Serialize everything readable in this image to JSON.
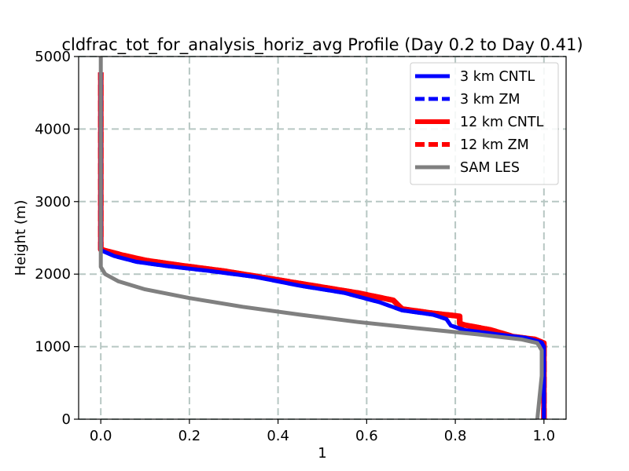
{
  "chart_data": {
    "type": "line",
    "title": "cldfrac_tot_for_analysis_horiz_avg Profile (Day 0.2 to Day 0.41)",
    "xlabel": "1",
    "ylabel": "Height (m)",
    "xlim": [
      -0.05,
      1.05
    ],
    "ylim": [
      0,
      5000
    ],
    "xticks": [
      0.0,
      0.2,
      0.4,
      0.6,
      0.8,
      1.0
    ],
    "xtick_labels": [
      "0.0",
      "0.2",
      "0.4",
      "0.6",
      "0.8",
      "1.0"
    ],
    "yticks": [
      0,
      1000,
      2000,
      3000,
      4000,
      5000
    ],
    "ytick_labels": [
      "0",
      "1000",
      "2000",
      "3000",
      "4000",
      "5000"
    ],
    "grid": true,
    "legend_position": "top-right",
    "series": [
      {
        "name": "3 km CNTL",
        "color": "#0000ff",
        "style": "solid",
        "points": [
          [
            1.0,
            0
          ],
          [
            1.0,
            1000
          ],
          [
            0.995,
            1060
          ],
          [
            0.96,
            1120
          ],
          [
            0.92,
            1150
          ],
          [
            0.87,
            1190
          ],
          [
            0.82,
            1230
          ],
          [
            0.79,
            1290
          ],
          [
            0.78,
            1380
          ],
          [
            0.75,
            1440
          ],
          [
            0.68,
            1500
          ],
          [
            0.63,
            1610
          ],
          [
            0.55,
            1740
          ],
          [
            0.45,
            1840
          ],
          [
            0.35,
            1960
          ],
          [
            0.25,
            2040
          ],
          [
            0.15,
            2110
          ],
          [
            0.08,
            2170
          ],
          [
            0.03,
            2250
          ],
          [
            0.0,
            2330
          ],
          [
            0.0,
            2500
          ],
          [
            0.0,
            4780
          ]
        ]
      },
      {
        "name": "3 km ZM",
        "color": "#0000ff",
        "style": "dashed",
        "points": [
          [
            1.0,
            0
          ],
          [
            1.0,
            1000
          ],
          [
            0.995,
            1060
          ],
          [
            0.96,
            1120
          ],
          [
            0.92,
            1150
          ],
          [
            0.87,
            1190
          ],
          [
            0.82,
            1230
          ],
          [
            0.79,
            1290
          ],
          [
            0.78,
            1380
          ],
          [
            0.75,
            1440
          ],
          [
            0.68,
            1500
          ],
          [
            0.63,
            1610
          ],
          [
            0.55,
            1740
          ],
          [
            0.45,
            1840
          ],
          [
            0.35,
            1960
          ],
          [
            0.25,
            2040
          ],
          [
            0.15,
            2110
          ],
          [
            0.08,
            2170
          ],
          [
            0.03,
            2250
          ],
          [
            0.0,
            2330
          ],
          [
            0.0,
            2500
          ],
          [
            0.0,
            4780
          ]
        ]
      },
      {
        "name": "12 km CNTL",
        "color": "#ff0000",
        "style": "solid",
        "points": [
          [
            1.0,
            0
          ],
          [
            1.0,
            1050
          ],
          [
            0.98,
            1100
          ],
          [
            0.93,
            1140
          ],
          [
            0.88,
            1230
          ],
          [
            0.82,
            1300
          ],
          [
            0.81,
            1320
          ],
          [
            0.81,
            1420
          ],
          [
            0.75,
            1460
          ],
          [
            0.68,
            1520
          ],
          [
            0.66,
            1640
          ],
          [
            0.58,
            1740
          ],
          [
            0.48,
            1840
          ],
          [
            0.38,
            1940
          ],
          [
            0.28,
            2040
          ],
          [
            0.18,
            2120
          ],
          [
            0.1,
            2190
          ],
          [
            0.05,
            2260
          ],
          [
            0.0,
            2340
          ],
          [
            0.0,
            2500
          ],
          [
            0.0,
            4780
          ]
        ]
      },
      {
        "name": "12 km ZM",
        "color": "#ff0000",
        "style": "dashed",
        "points": [
          [
            1.0,
            0
          ],
          [
            1.0,
            1050
          ],
          [
            0.98,
            1100
          ],
          [
            0.93,
            1140
          ],
          [
            0.88,
            1230
          ],
          [
            0.82,
            1300
          ],
          [
            0.81,
            1320
          ],
          [
            0.81,
            1420
          ],
          [
            0.75,
            1460
          ],
          [
            0.68,
            1520
          ],
          [
            0.66,
            1640
          ],
          [
            0.58,
            1740
          ],
          [
            0.48,
            1840
          ],
          [
            0.38,
            1940
          ],
          [
            0.28,
            2040
          ],
          [
            0.18,
            2120
          ],
          [
            0.1,
            2190
          ],
          [
            0.05,
            2260
          ],
          [
            0.0,
            2340
          ],
          [
            0.0,
            2500
          ],
          [
            0.0,
            4780
          ]
        ]
      },
      {
        "name": "SAM LES",
        "color": "#808080",
        "style": "solid",
        "points": [
          [
            0.985,
            0
          ],
          [
            0.99,
            300
          ],
          [
            0.995,
            600
          ],
          [
            0.995,
            950
          ],
          [
            0.985,
            1050
          ],
          [
            0.95,
            1100
          ],
          [
            0.85,
            1170
          ],
          [
            0.72,
            1250
          ],
          [
            0.58,
            1340
          ],
          [
            0.45,
            1440
          ],
          [
            0.32,
            1550
          ],
          [
            0.2,
            1670
          ],
          [
            0.1,
            1790
          ],
          [
            0.04,
            1900
          ],
          [
            0.01,
            2000
          ],
          [
            0.0,
            2100
          ],
          [
            0.0,
            2400
          ],
          [
            0.0,
            5000
          ]
        ]
      }
    ]
  }
}
